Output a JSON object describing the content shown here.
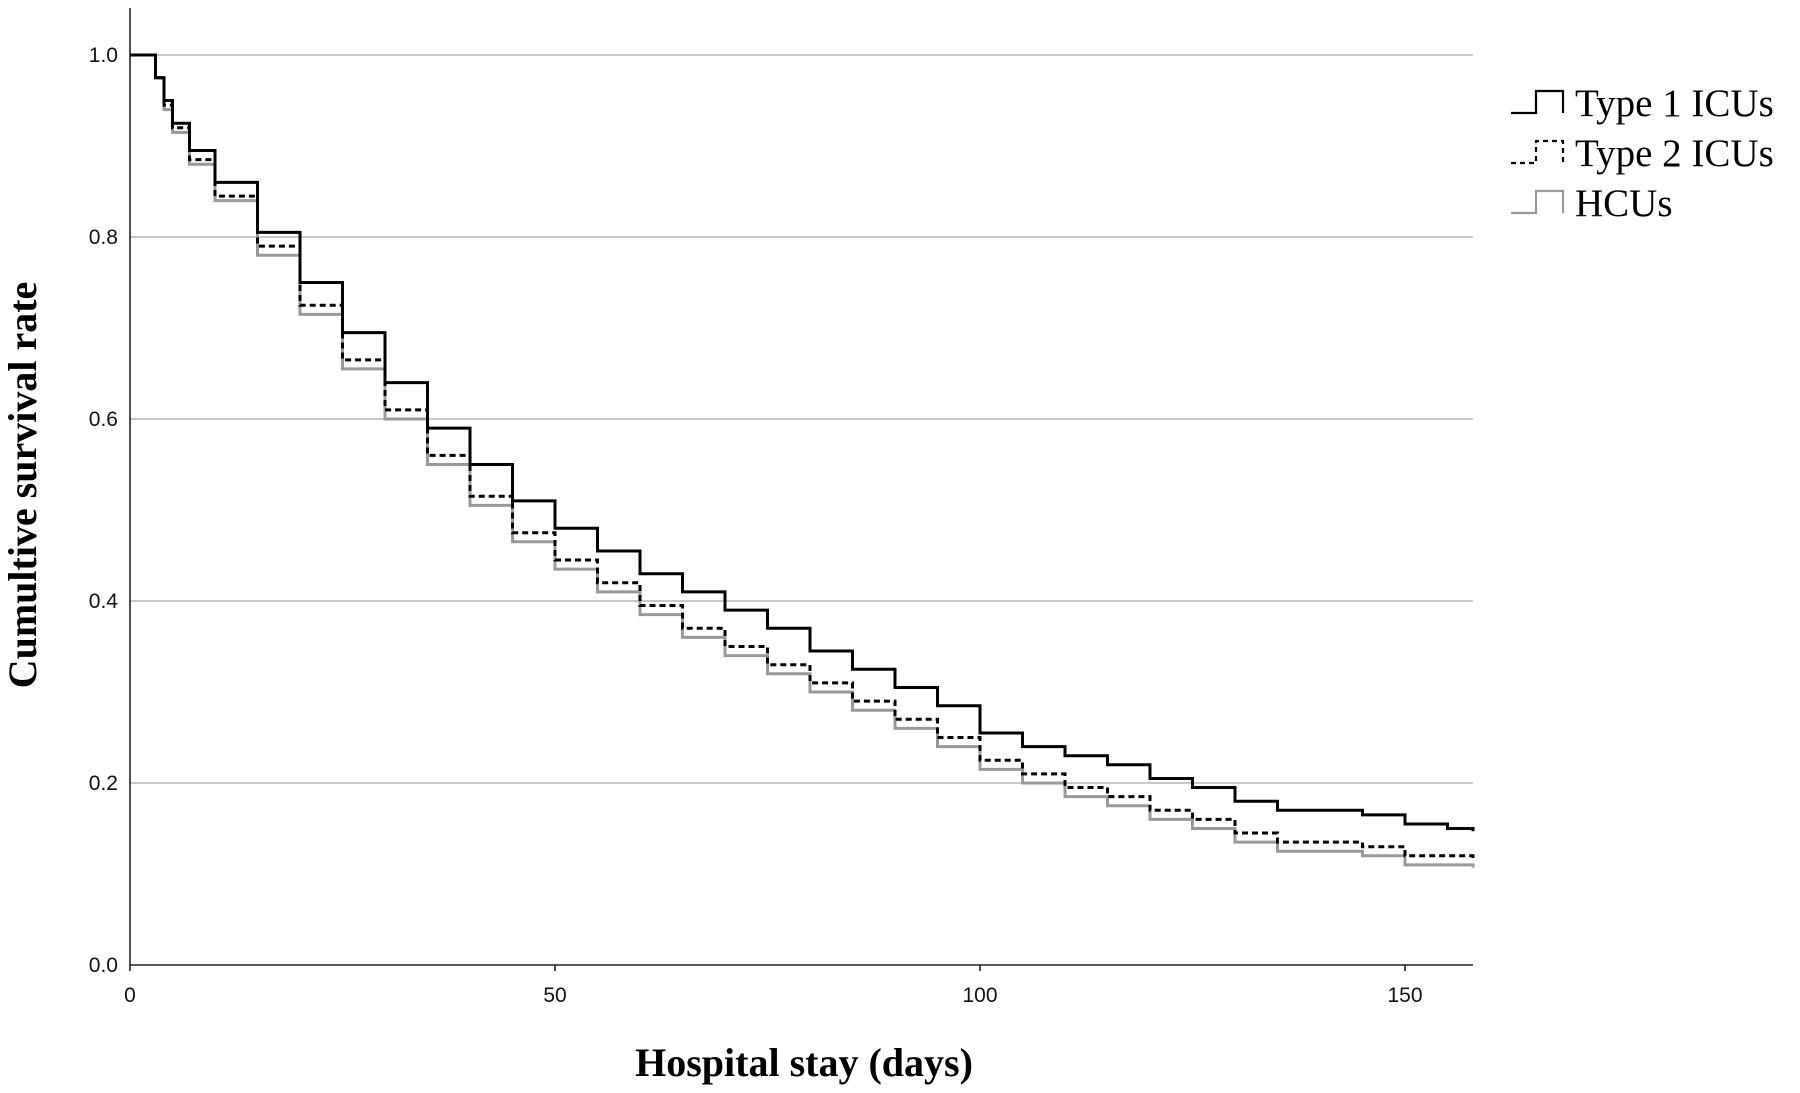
{
  "chart_data": {
    "type": "line",
    "step": true,
    "title": "",
    "xlabel": "Hospital stay (days)",
    "ylabel": "Cumultive survival rate",
    "xlim": [
      0,
      158
    ],
    "ylim": [
      0,
      1.0
    ],
    "xticks": [
      0,
      50,
      100,
      150
    ],
    "yticks": [
      0.0,
      0.2,
      0.4,
      0.6,
      0.8,
      1.0
    ],
    "xtick_labels": [
      "0",
      "50",
      "100",
      "150"
    ],
    "ytick_labels": [
      "0.0",
      "0.2",
      "0.4",
      "0.6",
      "0.8",
      "1.0"
    ],
    "grid": "horizontal",
    "legend_position": "right",
    "x": [
      0,
      2,
      3,
      4,
      5,
      7,
      10,
      15,
      20,
      25,
      30,
      35,
      40,
      45,
      50,
      55,
      60,
      65,
      70,
      75,
      80,
      85,
      90,
      95,
      100,
      105,
      110,
      115,
      120,
      125,
      130,
      135,
      140,
      145,
      150,
      155,
      158
    ],
    "series": [
      {
        "name": "Type 1 ICUs",
        "style": "solid",
        "color": "#000000",
        "values": [
          1.0,
          1.0,
          0.975,
          0.95,
          0.925,
          0.895,
          0.86,
          0.805,
          0.75,
          0.695,
          0.64,
          0.59,
          0.55,
          0.51,
          0.48,
          0.455,
          0.43,
          0.41,
          0.39,
          0.37,
          0.345,
          0.325,
          0.305,
          0.285,
          0.255,
          0.24,
          0.23,
          0.22,
          0.205,
          0.195,
          0.18,
          0.17,
          0.17,
          0.165,
          0.155,
          0.15,
          0.147
        ]
      },
      {
        "name": "Type 2 ICUs",
        "style": "dashed",
        "color": "#000000",
        "values": [
          1.0,
          1.0,
          0.975,
          0.945,
          0.92,
          0.885,
          0.845,
          0.79,
          0.725,
          0.665,
          0.61,
          0.56,
          0.515,
          0.475,
          0.445,
          0.42,
          0.395,
          0.37,
          0.35,
          0.33,
          0.31,
          0.29,
          0.27,
          0.25,
          0.225,
          0.21,
          0.195,
          0.185,
          0.17,
          0.16,
          0.145,
          0.135,
          0.135,
          0.13,
          0.12,
          0.12,
          0.117
        ]
      },
      {
        "name": "HCUs",
        "style": "solid",
        "color": "#999999",
        "values": [
          1.0,
          1.0,
          0.975,
          0.94,
          0.915,
          0.88,
          0.84,
          0.78,
          0.715,
          0.655,
          0.6,
          0.55,
          0.505,
          0.465,
          0.435,
          0.41,
          0.385,
          0.36,
          0.34,
          0.32,
          0.3,
          0.28,
          0.26,
          0.24,
          0.215,
          0.2,
          0.185,
          0.175,
          0.16,
          0.15,
          0.135,
          0.125,
          0.125,
          0.12,
          0.11,
          0.11,
          0.107
        ]
      }
    ]
  }
}
